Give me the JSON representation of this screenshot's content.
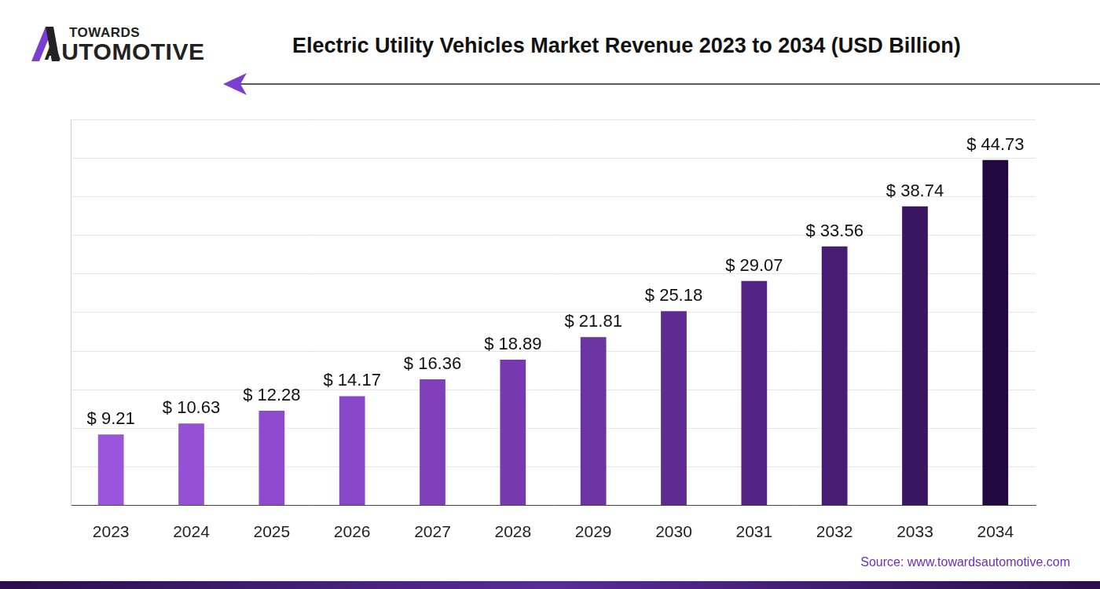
{
  "logo": [
    "TOWARDS",
    "AUTOMOTIVE"
  ],
  "source": "Source: www.towardsautomotive.com",
  "chart_data": {
    "type": "bar",
    "title": "Electric Utility Vehicles Market Revenue 2023 to 2034 (USD Billion)",
    "categories": [
      "2023",
      "2024",
      "2025",
      "2026",
      "2027",
      "2028",
      "2029",
      "2030",
      "2031",
      "2032",
      "2033",
      "2034"
    ],
    "values": [
      9.21,
      10.63,
      12.28,
      14.17,
      16.36,
      18.89,
      21.81,
      25.18,
      29.07,
      33.56,
      38.74,
      44.73
    ],
    "value_labels": [
      "$ 9.21",
      "$ 10.63",
      "$ 12.28",
      "$ 14.17",
      "$ 16.36",
      "$ 18.89",
      "$ 21.81",
      "$ 25.18",
      "$ 29.07",
      "$ 33.56",
      "$ 38.74",
      "$ 44.73"
    ],
    "colors": [
      "#9b55dc",
      "#9650d8",
      "#8f4bd0",
      "#8846c8",
      "#8040bc",
      "#7639b0",
      "#6c33a2",
      "#5f2b92",
      "#532483",
      "#461d72",
      "#3a1660",
      "#220a40"
    ],
    "ylim": [
      0,
      50
    ],
    "yticks": [
      0,
      5,
      10,
      15,
      20,
      25,
      30,
      35,
      40,
      45,
      50
    ],
    "grid": true,
    "data_labels": true,
    "tick_labels": "x"
  }
}
